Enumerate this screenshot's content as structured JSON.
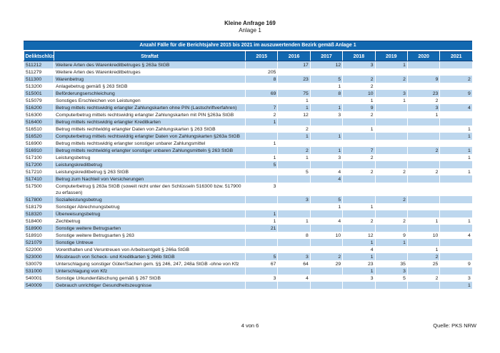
{
  "page": {
    "doc_title": "Kleine Anfrage 169",
    "doc_subtitle": "Anlage 1",
    "footer_page": "4 von 6",
    "footer_source": "Quelle: PKS NRW"
  },
  "colors": {
    "header_blue": "#1268b0",
    "row_alt": "#bdd7ee",
    "border_dark": "#0b3d78"
  },
  "table": {
    "title": "Anzahl Fälle für die Berichtsjahre 2015 bis 2021 im auszuwertenden Bezirk gemäß Anlage 1",
    "columns": [
      "Deliktschlüssel",
      "Straftat",
      "2015",
      "2016",
      "2017",
      "2018",
      "2019",
      "2020",
      "2021"
    ],
    "rows": [
      {
        "code": "511212",
        "name": "Weitere Arten des Warenkreditbetruges § 263a StGB",
        "values": [
          "",
          "17",
          "12",
          "3",
          "1",
          "",
          ""
        ]
      },
      {
        "code": "511279",
        "name": "Weitere Arten des Warenkreditbetruges",
        "values": [
          "205",
          "",
          "",
          "",
          "",
          "",
          ""
        ]
      },
      {
        "code": "511300",
        "name": "Warenbetrug",
        "values": [
          "8",
          "23",
          "5",
          "2",
          "2",
          "9",
          "2"
        ]
      },
      {
        "code": "513200",
        "name": "Anlagebetrug gemäß § 263 StGB",
        "values": [
          "",
          "",
          "1",
          "2",
          "",
          "",
          ""
        ]
      },
      {
        "code": "515001",
        "name": "Beförderungserschleichung",
        "values": [
          "69",
          "75",
          "8",
          "10",
          "3",
          "23",
          "9"
        ]
      },
      {
        "code": "515079",
        "name": "Sonstiges Erschleichen von Leistungen",
        "values": [
          "",
          "1",
          "",
          "1",
          "1",
          "2",
          ""
        ]
      },
      {
        "code": "516200",
        "name": "Betrug mittels rechtswidrig erlangter Zahlungskarten ohne PIN (Lastschriftverfahren)",
        "values": [
          "7",
          "1",
          "1",
          "9",
          "",
          "3",
          "4"
        ]
      },
      {
        "code": "516300",
        "name": "Computerbetrug mittels rechtswidrig erlangter Zahlungskarten mit PIN §263a StGB",
        "values": [
          "2",
          "12",
          "3",
          "2",
          "",
          "1",
          ""
        ]
      },
      {
        "code": "516400",
        "name": "Betrug mittels rechtswidrig erlangter Kreditkarten",
        "values": [
          "1",
          "",
          "",
          "",
          "",
          "",
          ""
        ]
      },
      {
        "code": "516510",
        "name": "Betrug mittels rechtwidrig erlangter Daten von Zahlungskarten § 263 StGB",
        "values": [
          "",
          "2",
          "",
          "1",
          "",
          "",
          "1"
        ]
      },
      {
        "code": "516520",
        "name": "Computerbetrug mittels rechtswidrig erlangter Daten von Zahlungskarten §263a StGB",
        "values": [
          "",
          "1",
          "1",
          "",
          "",
          "",
          "1"
        ]
      },
      {
        "code": "516900",
        "name": "Betrug mittels rechtswidrig erlangter sonstiger unbarer Zahlungsmittel",
        "values": [
          "1",
          "",
          "",
          "",
          "",
          "",
          ""
        ]
      },
      {
        "code": "516910",
        "name": "Betrug mittels rechtwidrig erlangter sonstiger unbaren Zahlungsmitteln § 263 StGB",
        "values": [
          "",
          "2",
          "1",
          "7",
          "",
          "2",
          "1"
        ]
      },
      {
        "code": "517100",
        "name": "Leistungsbetrug",
        "values": [
          "1",
          "1",
          "3",
          "2",
          "",
          "",
          "1"
        ]
      },
      {
        "code": "517200",
        "name": "Leistungskreditbetrug",
        "values": [
          "5",
          "",
          "",
          "",
          "",
          "",
          ""
        ]
      },
      {
        "code": "517210",
        "name": "Leistungskreditbetrug § 263 StGB",
        "values": [
          "",
          "5",
          "4",
          "2",
          "2",
          "2",
          "1"
        ]
      },
      {
        "code": "517410",
        "name": "Betrug zum Nachteil von Versicherungen",
        "values": [
          "",
          "",
          "4",
          "",
          "",
          "",
          ""
        ]
      },
      {
        "code": "517500",
        "name": "Computerbetrug § 263a StGB (soweit nicht unter den Schlüsseln 516300 bzw. 517900 zu erfassen)",
        "values": [
          "3",
          "",
          "",
          "",
          "",
          "",
          ""
        ]
      },
      {
        "code": "517800",
        "name": "Sozialleistungsbetrug",
        "values": [
          "",
          "3",
          "5",
          "",
          "2",
          "",
          ""
        ]
      },
      {
        "code": "518179",
        "name": "Sonstiger Abrechnungsbetrug",
        "values": [
          "",
          "",
          "1",
          "1",
          "",
          "",
          ""
        ]
      },
      {
        "code": "518320",
        "name": "Überweisungsbetrug",
        "values": [
          "1",
          "",
          "",
          "",
          "",
          "",
          ""
        ]
      },
      {
        "code": "518400",
        "name": "Zechbetrug",
        "values": [
          "1",
          "1",
          "4",
          "2",
          "2",
          "1",
          "1"
        ]
      },
      {
        "code": "518900",
        "name": "Sonstige weitere Betrugsarten",
        "values": [
          "21",
          "",
          "",
          "",
          "",
          "",
          ""
        ]
      },
      {
        "code": "518910",
        "name": "Sonstige weitere Betrugsarten § 263",
        "values": [
          "",
          "8",
          "10",
          "12",
          "9",
          "10",
          "4"
        ]
      },
      {
        "code": "521079",
        "name": "Sonstige Untreue",
        "values": [
          "",
          "",
          "",
          "1",
          "1",
          "",
          ""
        ]
      },
      {
        "code": "522000",
        "name": "Vorenthalten und Veruntreuen von Arbeitsentgelt § 266a StGB",
        "values": [
          "",
          "",
          "",
          "4",
          "",
          "1",
          ""
        ]
      },
      {
        "code": "523000",
        "name": "Missbrauch von Scheck- und Kreditkarten § 266b StGB",
        "values": [
          "5",
          "3",
          "2",
          "1",
          "",
          "2",
          ""
        ]
      },
      {
        "code": "530079",
        "name": "Unterschlagung sonstiger Güter/Sachen gem. §§ 246, 247, 248a StGB -ohne von Kfz",
        "values": [
          "67",
          "64",
          "29",
          "23",
          "35",
          "25",
          "9"
        ]
      },
      {
        "code": "531000",
        "name": "Unterschlagung von Kfz",
        "values": [
          "",
          "",
          "",
          "1",
          "3",
          "",
          ""
        ]
      },
      {
        "code": "540001",
        "name": "Sonstige Urkundenfälschung gemäß § 267 StGB",
        "values": [
          "3",
          "4",
          "",
          "3",
          "5",
          "2",
          "3"
        ]
      },
      {
        "code": "540009",
        "name": "Gebrauch unrichtiger Gesundheitszeugnisse",
        "values": [
          "",
          "",
          "",
          "",
          "",
          "",
          "1"
        ]
      }
    ]
  }
}
